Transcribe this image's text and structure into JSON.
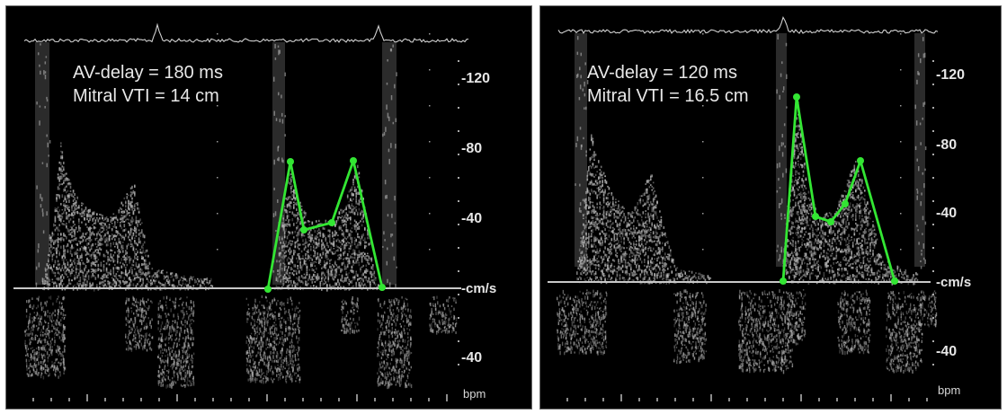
{
  "panels": [
    {
      "id": "left",
      "annotation_line1": "AV-delay = 180 ms",
      "annotation_line2": "Mitral VTI = 14 cm",
      "scale_labels": [
        "-120",
        "-80",
        "-40",
        "-cm/s",
        "-40"
      ],
      "unit_footer": "bpm"
    },
    {
      "id": "right",
      "annotation_line1": "AV-delay = 120 ms",
      "annotation_line2": "Mitral VTI = 16.5 cm",
      "scale_labels": [
        "-120",
        "-80",
        "-40",
        "-cm/s",
        "-40"
      ],
      "unit_footer": "bpm"
    }
  ],
  "colors": {
    "background": "#000000",
    "trace": "#33e633",
    "doppler": "#bdbdbd",
    "baseline": "#c8c8c8",
    "text": "#e8e8e8"
  },
  "overlay_trace_color_name": "green"
}
